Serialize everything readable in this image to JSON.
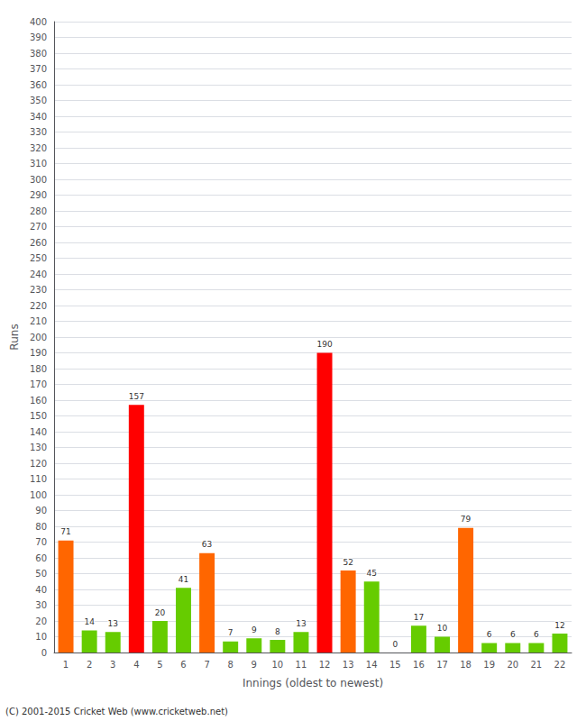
{
  "chart_data": {
    "type": "bar",
    "xlabel": "Innings (oldest to newest)",
    "ylabel": "Runs",
    "categories": [
      "1",
      "2",
      "3",
      "4",
      "5",
      "6",
      "7",
      "8",
      "9",
      "10",
      "11",
      "12",
      "13",
      "14",
      "15",
      "16",
      "17",
      "18",
      "19",
      "20",
      "21",
      "22"
    ],
    "values": [
      71,
      14,
      13,
      157,
      20,
      41,
      63,
      7,
      9,
      8,
      13,
      190,
      52,
      45,
      0,
      17,
      10,
      79,
      6,
      6,
      6,
      12
    ],
    "colors": [
      "#ff6600",
      "#66cc00",
      "#66cc00",
      "#ff0000",
      "#66cc00",
      "#66cc00",
      "#ff6600",
      "#66cc00",
      "#66cc00",
      "#66cc00",
      "#66cc00",
      "#ff0000",
      "#ff6600",
      "#66cc00",
      "#66cc00",
      "#66cc00",
      "#66cc00",
      "#ff6600",
      "#66cc00",
      "#66cc00",
      "#66cc00",
      "#66cc00"
    ],
    "ylim": [
      0,
      400
    ],
    "yticks": [
      0,
      10,
      20,
      30,
      40,
      50,
      60,
      70,
      80,
      90,
      100,
      110,
      120,
      130,
      140,
      150,
      160,
      170,
      180,
      190,
      200,
      210,
      220,
      230,
      240,
      250,
      260,
      270,
      280,
      290,
      300,
      310,
      320,
      330,
      340,
      350,
      360,
      370,
      380,
      390,
      400
    ],
    "grid": true,
    "data_labels": true,
    "annotations": [
      "(C) 2001-2015 Cricket Web (www.cricketweb.net)"
    ]
  }
}
